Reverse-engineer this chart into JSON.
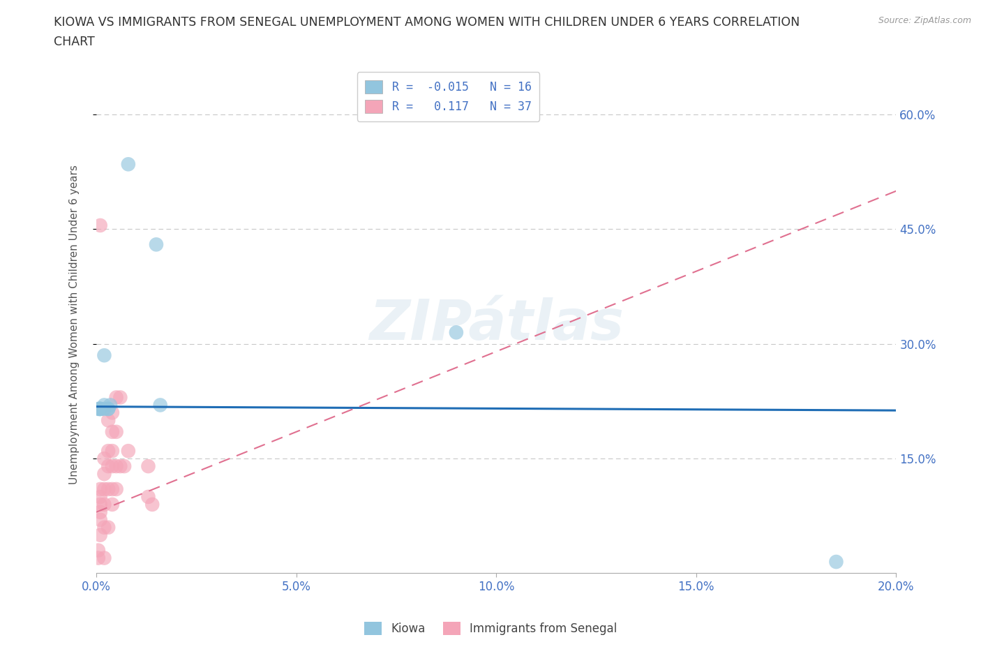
{
  "title_line1": "KIOWA VS IMMIGRANTS FROM SENEGAL UNEMPLOYMENT AMONG WOMEN WITH CHILDREN UNDER 6 YEARS CORRELATION",
  "title_line2": "CHART",
  "source": "Source: ZipAtlas.com",
  "ylabel": "Unemployment Among Women with Children Under 6 years",
  "xlim": [
    0.0,
    0.2
  ],
  "ylim": [
    0.0,
    0.65
  ],
  "xtick_labels": [
    "0.0%",
    "5.0%",
    "10.0%",
    "15.0%",
    "20.0%"
  ],
  "xtick_vals": [
    0.0,
    0.05,
    0.1,
    0.15,
    0.2
  ],
  "ytick_labels": [
    "15.0%",
    "30.0%",
    "45.0%",
    "60.0%"
  ],
  "ytick_vals": [
    0.15,
    0.3,
    0.45,
    0.6
  ],
  "kiowa_color": "#92c5de",
  "senegal_color": "#f4a5b8",
  "kiowa_R": -0.015,
  "kiowa_N": 16,
  "senegal_R": 0.117,
  "senegal_N": 37,
  "kiowa_scatter_x": [
    0.008,
    0.015,
    0.001,
    0.001,
    0.002,
    0.003,
    0.0035,
    0.002,
    0.001,
    0.003,
    0.016,
    0.002,
    0.09,
    0.0005,
    0.0008,
    0.185
  ],
  "kiowa_scatter_y": [
    0.535,
    0.43,
    0.215,
    0.215,
    0.22,
    0.215,
    0.22,
    0.215,
    0.215,
    0.215,
    0.22,
    0.285,
    0.315,
    0.215,
    0.215,
    0.015
  ],
  "senegal_scatter_x": [
    0.0005,
    0.0005,
    0.001,
    0.001,
    0.001,
    0.001,
    0.001,
    0.001,
    0.002,
    0.002,
    0.002,
    0.002,
    0.002,
    0.002,
    0.003,
    0.003,
    0.003,
    0.003,
    0.003,
    0.004,
    0.004,
    0.004,
    0.004,
    0.004,
    0.004,
    0.005,
    0.005,
    0.005,
    0.005,
    0.006,
    0.006,
    0.007,
    0.008,
    0.013,
    0.013,
    0.014,
    0.001
  ],
  "senegal_scatter_y": [
    0.02,
    0.03,
    0.05,
    0.07,
    0.08,
    0.09,
    0.1,
    0.11,
    0.02,
    0.06,
    0.09,
    0.11,
    0.13,
    0.15,
    0.06,
    0.11,
    0.14,
    0.16,
    0.2,
    0.09,
    0.11,
    0.14,
    0.16,
    0.185,
    0.21,
    0.11,
    0.14,
    0.185,
    0.23,
    0.14,
    0.23,
    0.14,
    0.16,
    0.1,
    0.14,
    0.09,
    0.455
  ],
  "kiowa_line_x": [
    0.0,
    0.2
  ],
  "kiowa_line_y": [
    0.218,
    0.213
  ],
  "senegal_line_x": [
    0.0,
    0.2
  ],
  "senegal_line_y": [
    0.08,
    0.5
  ],
  "watermark": "ZIPátlas",
  "kiowa_line_color": "#1f6db5",
  "senegal_line_color": "#e07090",
  "title_color": "#333333",
  "tick_color": "#4472c4",
  "grid_color": "#c8c8c8",
  "ylabel_color": "#555555"
}
